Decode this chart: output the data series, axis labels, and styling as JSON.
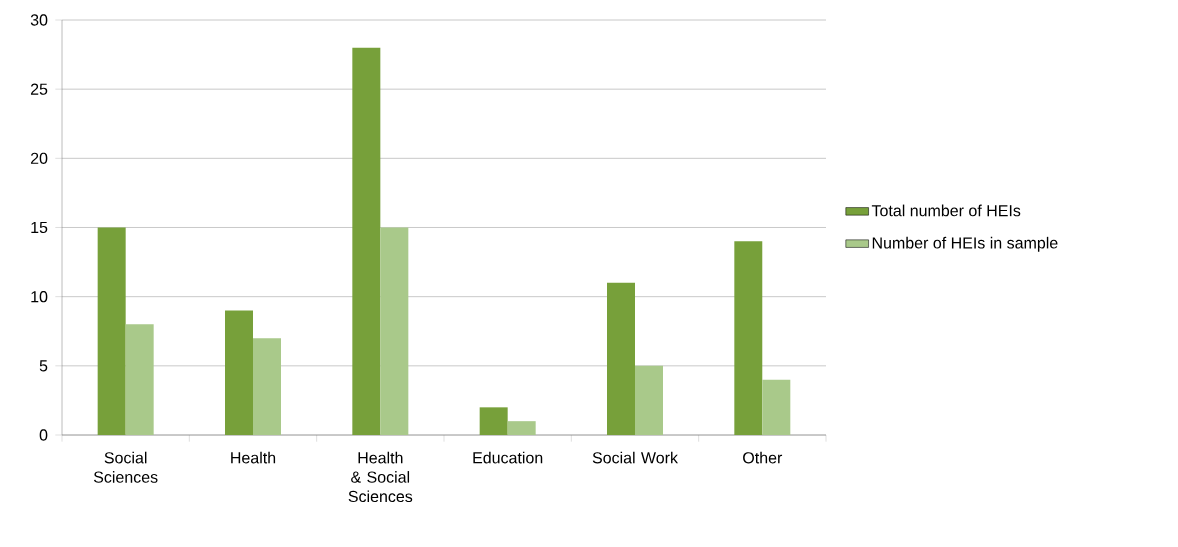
{
  "chart_data": {
    "type": "bar",
    "categories": [
      "Social Sciences",
      "Health",
      "Health & Social Sciences",
      "Education",
      "Social Work",
      "Other"
    ],
    "series": [
      {
        "name": "Total number of HEIs",
        "color": "#77a03a",
        "values": [
          15,
          9,
          28,
          2,
          11,
          14
        ]
      },
      {
        "name": "Number of HEIs in sample",
        "color": "#a9c98a",
        "values": [
          8,
          7,
          15,
          1,
          5,
          4
        ]
      }
    ],
    "ylim": [
      0,
      30
    ],
    "yticks": [
      0,
      5,
      10,
      15,
      20,
      25,
      30
    ],
    "grid": "y",
    "legend": "right"
  }
}
